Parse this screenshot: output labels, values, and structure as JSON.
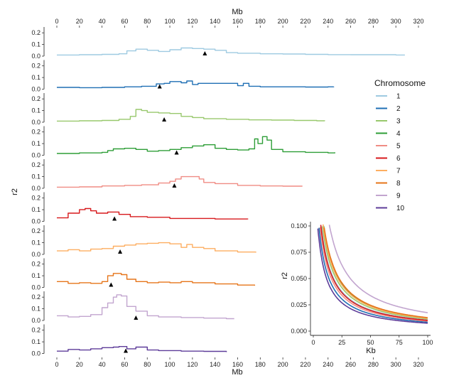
{
  "chart_data": [
    {
      "type": "line",
      "subtype": "stacked-small-multiples",
      "x_axis_label": "Mb",
      "y_axis_label": "r2",
      "x_ticks": [
        "0",
        "20",
        "40",
        "60",
        "80",
        "100",
        "120",
        "140",
        "160",
        "180",
        "200",
        "220",
        "240",
        "260",
        "280",
        "300",
        "320"
      ],
      "y_ticks": [
        "0.0",
        "0.1",
        "0.2"
      ],
      "xlim": [
        0,
        320
      ],
      "ylim": [
        0,
        0.25
      ],
      "grid": false,
      "legend": {
        "title": "Chromosome",
        "placement": "right",
        "entries": [
          "1",
          "2",
          "3",
          "4",
          "5",
          "6",
          "7",
          "8",
          "9",
          "10"
        ]
      },
      "series": [
        {
          "name": "1",
          "color": "#9ecae1",
          "centromere_mb": 131,
          "points": [
            [
              0,
              0.01
            ],
            [
              20,
              0.012
            ],
            [
              40,
              0.015
            ],
            [
              55,
              0.02
            ],
            [
              62,
              0.045
            ],
            [
              70,
              0.06
            ],
            [
              80,
              0.05
            ],
            [
              90,
              0.04
            ],
            [
              100,
              0.055
            ],
            [
              110,
              0.07
            ],
            [
              120,
              0.065
            ],
            [
              130,
              0.06
            ],
            [
              140,
              0.05
            ],
            [
              150,
              0.03
            ],
            [
              160,
              0.025
            ],
            [
              180,
              0.02
            ],
            [
              200,
              0.018
            ],
            [
              220,
              0.015
            ],
            [
              240,
              0.013
            ],
            [
              260,
              0.012
            ],
            [
              280,
              0.012
            ],
            [
              300,
              0.01
            ],
            [
              308,
              0.01
            ]
          ]
        },
        {
          "name": "2",
          "color": "#1f6fb4",
          "centromere_mb": 91,
          "points": [
            [
              0,
              0.015
            ],
            [
              20,
              0.013
            ],
            [
              40,
              0.015
            ],
            [
              60,
              0.02
            ],
            [
              75,
              0.025
            ],
            [
              88,
              0.045
            ],
            [
              95,
              0.05
            ],
            [
              100,
              0.065
            ],
            [
              110,
              0.055
            ],
            [
              115,
              0.07
            ],
            [
              120,
              0.04
            ],
            [
              125,
              0.05
            ],
            [
              140,
              0.05
            ],
            [
              160,
              0.03
            ],
            [
              165,
              0.05
            ],
            [
              170,
              0.025
            ],
            [
              180,
              0.02
            ],
            [
              200,
              0.02
            ],
            [
              220,
              0.018
            ],
            [
              240,
              0.02
            ],
            [
              245,
              0.022
            ]
          ]
        },
        {
          "name": "3",
          "color": "#98c86c",
          "centromere_mb": 95,
          "points": [
            [
              0,
              0.01
            ],
            [
              20,
              0.012
            ],
            [
              40,
              0.015
            ],
            [
              55,
              0.025
            ],
            [
              65,
              0.05
            ],
            [
              70,
              0.11
            ],
            [
              75,
              0.1
            ],
            [
              80,
              0.085
            ],
            [
              90,
              0.08
            ],
            [
              100,
              0.075
            ],
            [
              110,
              0.05
            ],
            [
              120,
              0.04
            ],
            [
              130,
              0.03
            ],
            [
              150,
              0.025
            ],
            [
              170,
              0.02
            ],
            [
              190,
              0.018
            ],
            [
              210,
              0.015
            ],
            [
              230,
              0.012
            ],
            [
              237,
              0.01
            ]
          ]
        },
        {
          "name": "4",
          "color": "#2e9e37",
          "centromere_mb": 106,
          "points": [
            [
              0,
              0.015
            ],
            [
              20,
              0.02
            ],
            [
              40,
              0.025
            ],
            [
              45,
              0.04
            ],
            [
              50,
              0.055
            ],
            [
              60,
              0.06
            ],
            [
              70,
              0.05
            ],
            [
              80,
              0.035
            ],
            [
              90,
              0.04
            ],
            [
              100,
              0.05
            ],
            [
              110,
              0.065
            ],
            [
              120,
              0.08
            ],
            [
              130,
              0.09
            ],
            [
              140,
              0.06
            ],
            [
              150,
              0.05
            ],
            [
              160,
              0.045
            ],
            [
              170,
              0.055
            ],
            [
              175,
              0.14
            ],
            [
              178,
              0.1
            ],
            [
              182,
              0.16
            ],
            [
              186,
              0.13
            ],
            [
              190,
              0.05
            ],
            [
              200,
              0.03
            ],
            [
              220,
              0.025
            ],
            [
              240,
              0.02
            ],
            [
              246,
              0.025
            ]
          ]
        },
        {
          "name": "5",
          "color": "#f08c84",
          "centromere_mb": 104,
          "points": [
            [
              0,
              0.01
            ],
            [
              20,
              0.012
            ],
            [
              40,
              0.02
            ],
            [
              60,
              0.025
            ],
            [
              75,
              0.03
            ],
            [
              90,
              0.045
            ],
            [
              100,
              0.06
            ],
            [
              105,
              0.08
            ],
            [
              110,
              0.1
            ],
            [
              120,
              0.1
            ],
            [
              126,
              0.08
            ],
            [
              130,
              0.05
            ],
            [
              140,
              0.04
            ],
            [
              160,
              0.025
            ],
            [
              180,
              0.02
            ],
            [
              200,
              0.018
            ],
            [
              217,
              0.015
            ]
          ]
        },
        {
          "name": "6",
          "color": "#d7191c",
          "centromere_mb": 51,
          "points": [
            [
              0,
              0.03
            ],
            [
              10,
              0.07
            ],
            [
              20,
              0.1
            ],
            [
              25,
              0.11
            ],
            [
              30,
              0.09
            ],
            [
              35,
              0.07
            ],
            [
              45,
              0.08
            ],
            [
              55,
              0.06
            ],
            [
              65,
              0.04
            ],
            [
              80,
              0.035
            ],
            [
              100,
              0.025
            ],
            [
              120,
              0.025
            ],
            [
              140,
              0.02
            ],
            [
              160,
              0.02
            ],
            [
              169,
              0.018
            ]
          ]
        },
        {
          "name": "7",
          "color": "#fdae61",
          "centromere_mb": 56,
          "points": [
            [
              0,
              0.03
            ],
            [
              10,
              0.04
            ],
            [
              20,
              0.03
            ],
            [
              30,
              0.045
            ],
            [
              40,
              0.05
            ],
            [
              50,
              0.07
            ],
            [
              60,
              0.08
            ],
            [
              70,
              0.09
            ],
            [
              80,
              0.095
            ],
            [
              90,
              0.1
            ],
            [
              100,
              0.09
            ],
            [
              110,
              0.06
            ],
            [
              115,
              0.085
            ],
            [
              120,
              0.06
            ],
            [
              130,
              0.05
            ],
            [
              140,
              0.03
            ],
            [
              160,
              0.02
            ],
            [
              176,
              0.015
            ]
          ]
        },
        {
          "name": "8",
          "color": "#e6751a",
          "centromere_mb": 48,
          "points": [
            [
              0,
              0.05
            ],
            [
              10,
              0.035
            ],
            [
              20,
              0.04
            ],
            [
              30,
              0.035
            ],
            [
              40,
              0.05
            ],
            [
              45,
              0.1
            ],
            [
              50,
              0.12
            ],
            [
              57,
              0.11
            ],
            [
              62,
              0.07
            ],
            [
              70,
              0.05
            ],
            [
              80,
              0.04
            ],
            [
              90,
              0.045
            ],
            [
              100,
              0.04
            ],
            [
              110,
              0.05
            ],
            [
              120,
              0.04
            ],
            [
              140,
              0.03
            ],
            [
              160,
              0.02
            ],
            [
              175,
              0.015
            ]
          ]
        },
        {
          "name": "9",
          "color": "#c2a5cf",
          "centromere_mb": 70,
          "points": [
            [
              0,
              0.04
            ],
            [
              10,
              0.03
            ],
            [
              20,
              0.035
            ],
            [
              30,
              0.05
            ],
            [
              40,
              0.11
            ],
            [
              45,
              0.15
            ],
            [
              50,
              0.2
            ],
            [
              53,
              0.22
            ],
            [
              57,
              0.21
            ],
            [
              62,
              0.12
            ],
            [
              70,
              0.08
            ],
            [
              80,
              0.04
            ],
            [
              90,
              0.03
            ],
            [
              110,
              0.025
            ],
            [
              130,
              0.02
            ],
            [
              150,
              0.015
            ],
            [
              157,
              0.015
            ]
          ]
        },
        {
          "name": "10",
          "color": "#5e3c99",
          "centromere_mb": 61,
          "points": [
            [
              0,
              0.02
            ],
            [
              10,
              0.035
            ],
            [
              20,
              0.03
            ],
            [
              30,
              0.04
            ],
            [
              40,
              0.05
            ],
            [
              50,
              0.055
            ],
            [
              55,
              0.06
            ],
            [
              62,
              0.04
            ],
            [
              70,
              0.055
            ],
            [
              80,
              0.03
            ],
            [
              90,
              0.025
            ],
            [
              110,
              0.02
            ],
            [
              130,
              0.018
            ],
            [
              150,
              0.012
            ]
          ]
        }
      ]
    },
    {
      "type": "line",
      "subtype": "inset-ld-decay",
      "x_axis_label": "Kb",
      "y_axis_label": "r2",
      "x_ticks": [
        "0",
        "25",
        "50",
        "75",
        "100"
      ],
      "y_ticks": [
        "0.000",
        "0.025",
        "0.050",
        "0.075",
        "0.100"
      ],
      "xlim": [
        0,
        100
      ],
      "ylim": [
        0,
        0.1
      ],
      "series_r2_at_100kb": [
        {
          "name": "1",
          "value": 0.0105
        },
        {
          "name": "2",
          "value": 0.0085
        },
        {
          "name": "3",
          "value": 0.0115
        },
        {
          "name": "4",
          "value": 0.0125
        },
        {
          "name": "5",
          "value": 0.0095
        },
        {
          "name": "6",
          "value": 0.0102
        },
        {
          "name": "7",
          "value": 0.0122
        },
        {
          "name": "8",
          "value": 0.0128
        },
        {
          "name": "9",
          "value": 0.0175
        },
        {
          "name": "10",
          "value": 0.0075
        }
      ]
    }
  ]
}
